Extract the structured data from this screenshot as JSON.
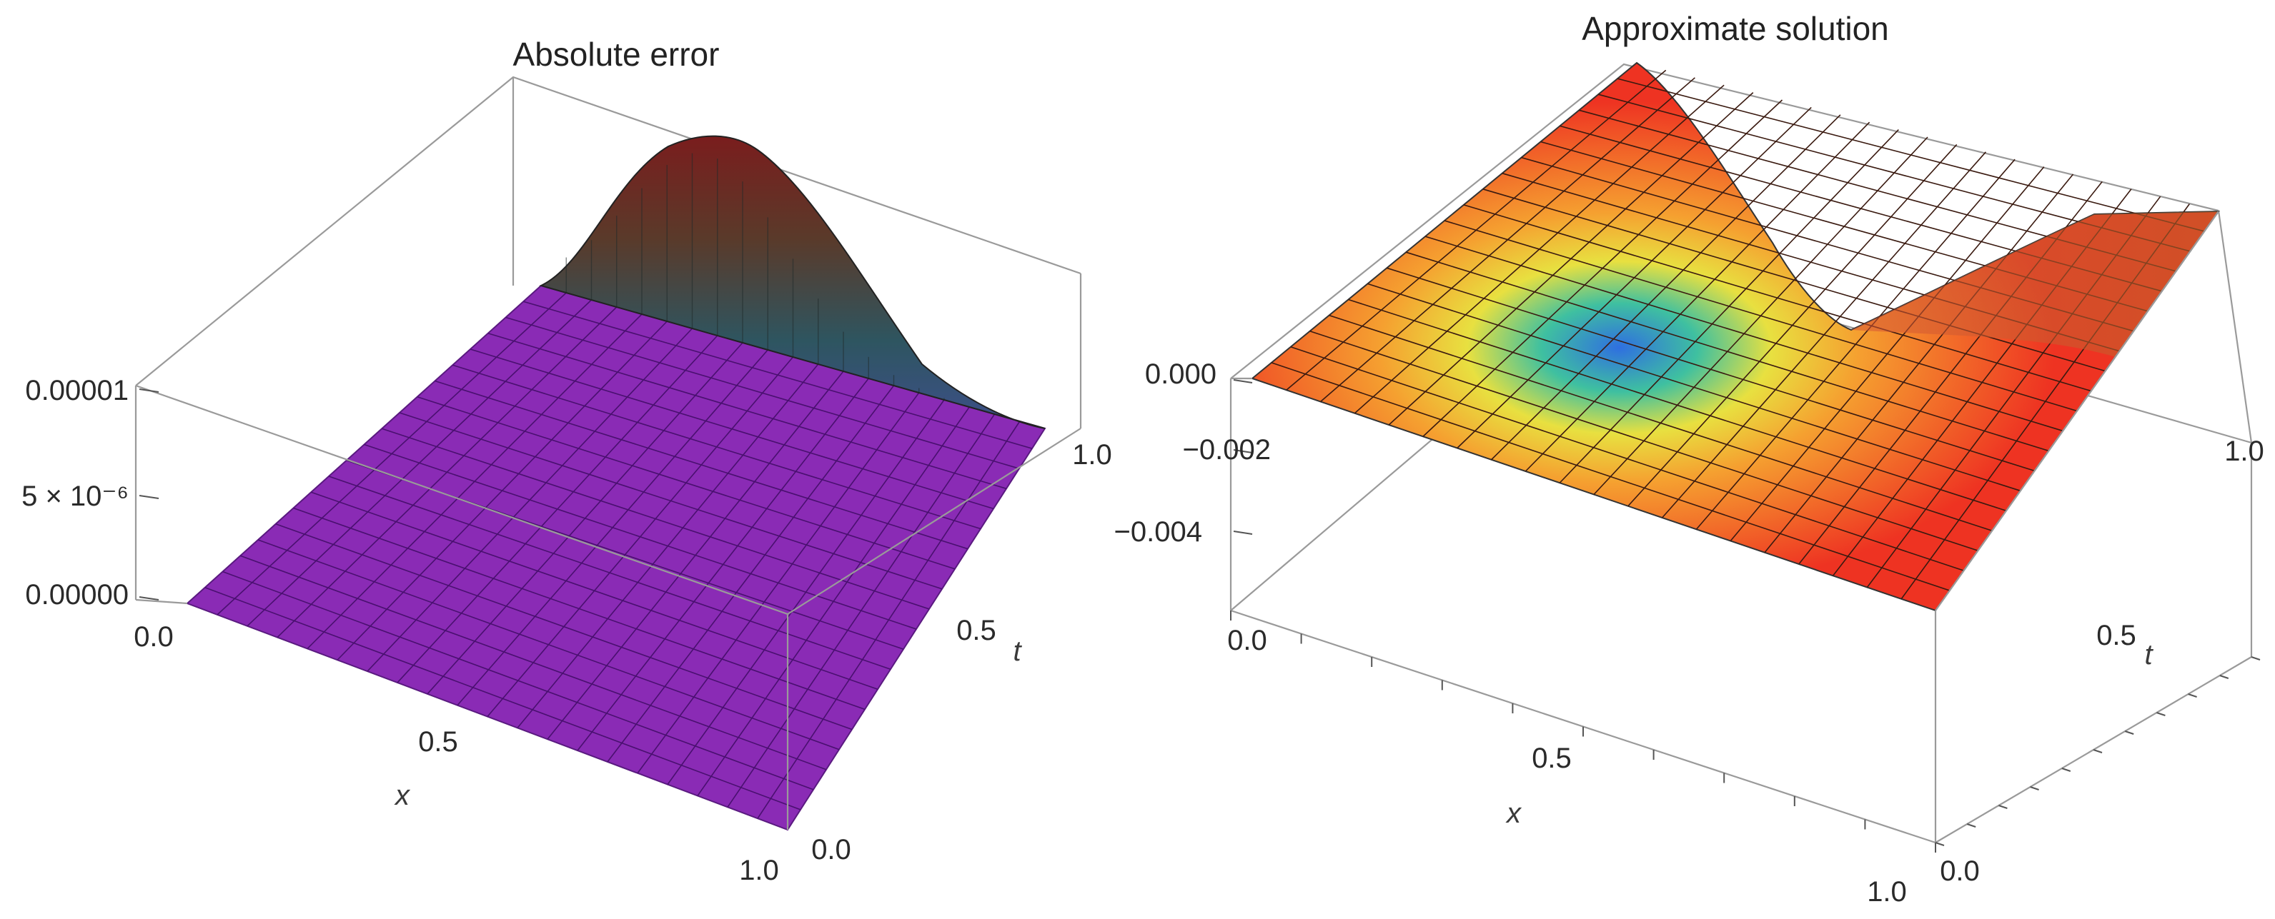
{
  "chart_data": [
    {
      "type": "surface3d",
      "title": "Absolute error",
      "xlabel": "x",
      "ylabel": "t",
      "zlabel": "",
      "xlim": [
        0,
        1
      ],
      "ylim": [
        0,
        1
      ],
      "zlim": [
        0,
        1e-05
      ],
      "x_ticks": [
        "0.0",
        "0.5",
        "1.0"
      ],
      "y_ticks": [
        "0.0",
        "0.5",
        "1.0"
      ],
      "z_ticks": [
        "0.00000",
        "5 × 10⁻⁶",
        "0.00001"
      ],
      "surface": {
        "description_values": {
          "flat_level": 0,
          "peak_value": 9.5e-06,
          "peak_at": {
            "x": 0.3,
            "t": 1.0
          }
        },
        "color": "#8a2bb5"
      },
      "grid": true
    },
    {
      "type": "surface3d",
      "title": "Approximate solution",
      "xlabel": "x",
      "ylabel": "t",
      "zlabel": "",
      "xlim": [
        0,
        1
      ],
      "ylim": [
        0,
        1
      ],
      "zlim": [
        -0.006,
        0.0
      ],
      "x_ticks": [
        "0.0",
        "0.5",
        "1.0"
      ],
      "y_ticks": [
        "0.0",
        "0.5",
        "1.0"
      ],
      "z_ticks": [
        "0.000",
        "−0.002",
        "−0.004"
      ],
      "surface": {
        "description_values": {
          "flat_level": 0,
          "min_value": -0.0055,
          "min_at": {
            "x": 0.45,
            "t": 1.0
          }
        },
        "color": "#ee3322"
      },
      "grid": true
    }
  ]
}
